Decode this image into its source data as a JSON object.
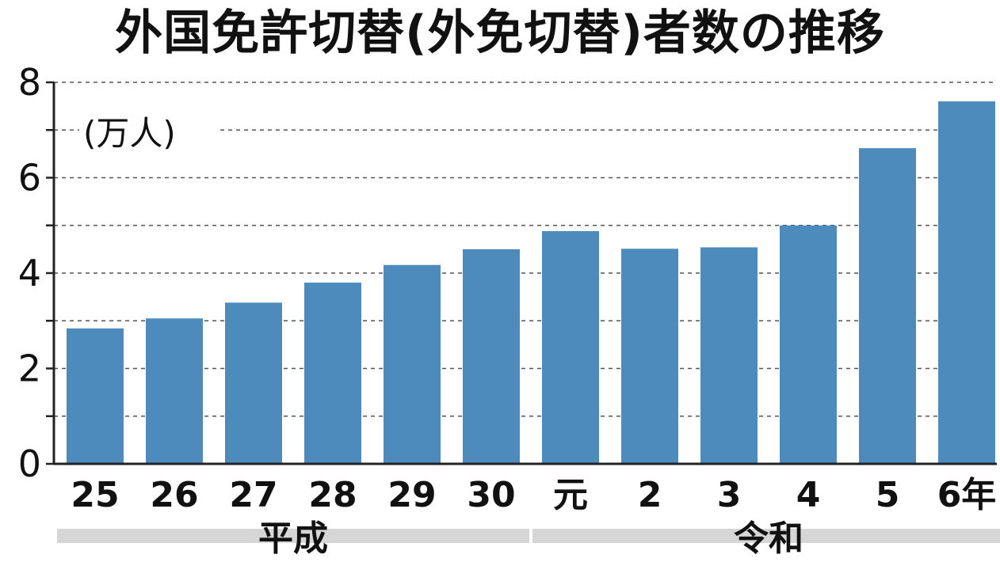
{
  "chart_data": {
    "type": "bar",
    "title": "外国免許切替(外免切替)者数の推移",
    "unit": "(万人)",
    "categories": [
      "25",
      "26",
      "27",
      "28",
      "29",
      "30",
      "元",
      "2",
      "3",
      "4",
      "5",
      "6年"
    ],
    "values": [
      2.84,
      3.05,
      3.38,
      3.8,
      4.17,
      4.5,
      4.88,
      4.51,
      4.54,
      5.0,
      6.62,
      7.6
    ],
    "eras": [
      {
        "label": "平成",
        "from": 0,
        "to": 5
      },
      {
        "label": "令和",
        "from": 6,
        "to": 11
      }
    ],
    "ylim": [
      0,
      8
    ],
    "yticks": [
      0,
      2,
      4,
      6,
      8
    ],
    "xlabel": "",
    "ylabel": "",
    "grid": true,
    "colors": {
      "bar": "#4e8bbd",
      "grid": "#555555",
      "axis": "#222222",
      "era_band": "#d6d6d6"
    }
  }
}
